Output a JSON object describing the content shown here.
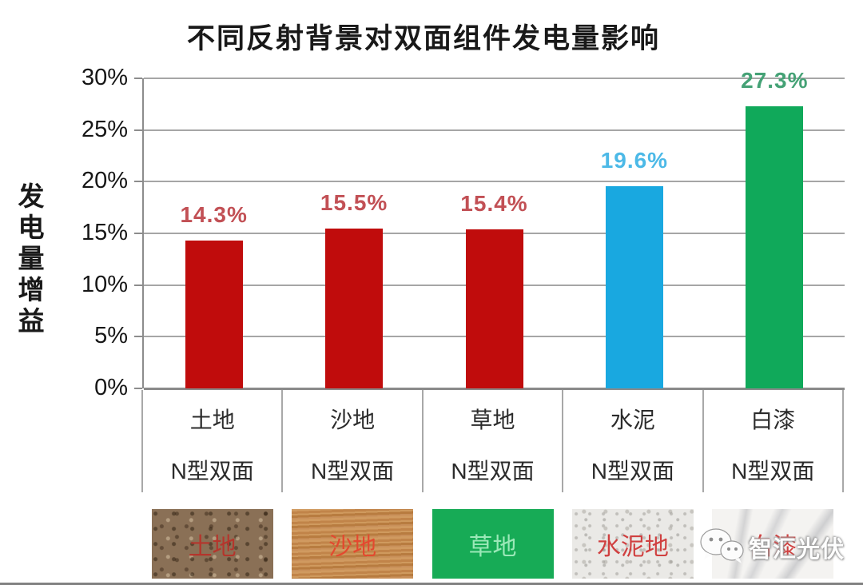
{
  "title": "不同反射背景对双面组件发电量影响",
  "chart_data": {
    "type": "bar",
    "title": "不同反射背景对双面组件发电量影响",
    "xlabel": "",
    "ylabel": "发电量增益",
    "ylim_pct": [
      0,
      30
    ],
    "yticks": [
      "30%",
      "25%",
      "20%",
      "15%",
      "10%",
      "5%",
      "0%"
    ],
    "grid": true,
    "legend_position": "none",
    "categories": [
      "土地",
      "沙地",
      "草地",
      "水泥",
      "白漆"
    ],
    "category_keys": [
      "soil",
      "sand",
      "grass",
      "cement",
      "white-paint"
    ],
    "sub_labels": [
      "N型双面",
      "N型双面",
      "N型双面",
      "N型双面",
      "N型双面"
    ],
    "values": [
      14.3,
      15.5,
      15.4,
      19.6,
      27.3
    ],
    "value_labels": [
      "14.3%",
      "15.5%",
      "15.4%",
      "19.6%",
      "27.3%"
    ],
    "bar_colors": [
      "#c00c0c",
      "#c00c0c",
      "#c00c0c",
      "#19a8e0",
      "#10a95a"
    ],
    "value_label_colors": [
      "#c25055",
      "#c25055",
      "#c25055",
      "#4cb9e7",
      "#45a276"
    ]
  },
  "texture_legend": [
    {
      "key": "soil",
      "label": "土地",
      "style": "tex-soil",
      "label_color": "#b5352c"
    },
    {
      "key": "sand",
      "label": "沙地",
      "style": "tex-sand",
      "label_color": "#e3492f"
    },
    {
      "key": "grass",
      "label": "草地",
      "style": "tex-grass",
      "label_color": "#9be8b8"
    },
    {
      "key": "cement",
      "label": "水泥地",
      "style": "tex-cement",
      "label_color": "#d04040"
    },
    {
      "key": "white-paint",
      "label": "白漆",
      "style": "tex-marble",
      "label_color": "#d04040"
    }
  ],
  "watermark": {
    "icon": "wechat-icon",
    "text": "智汇光伏"
  }
}
